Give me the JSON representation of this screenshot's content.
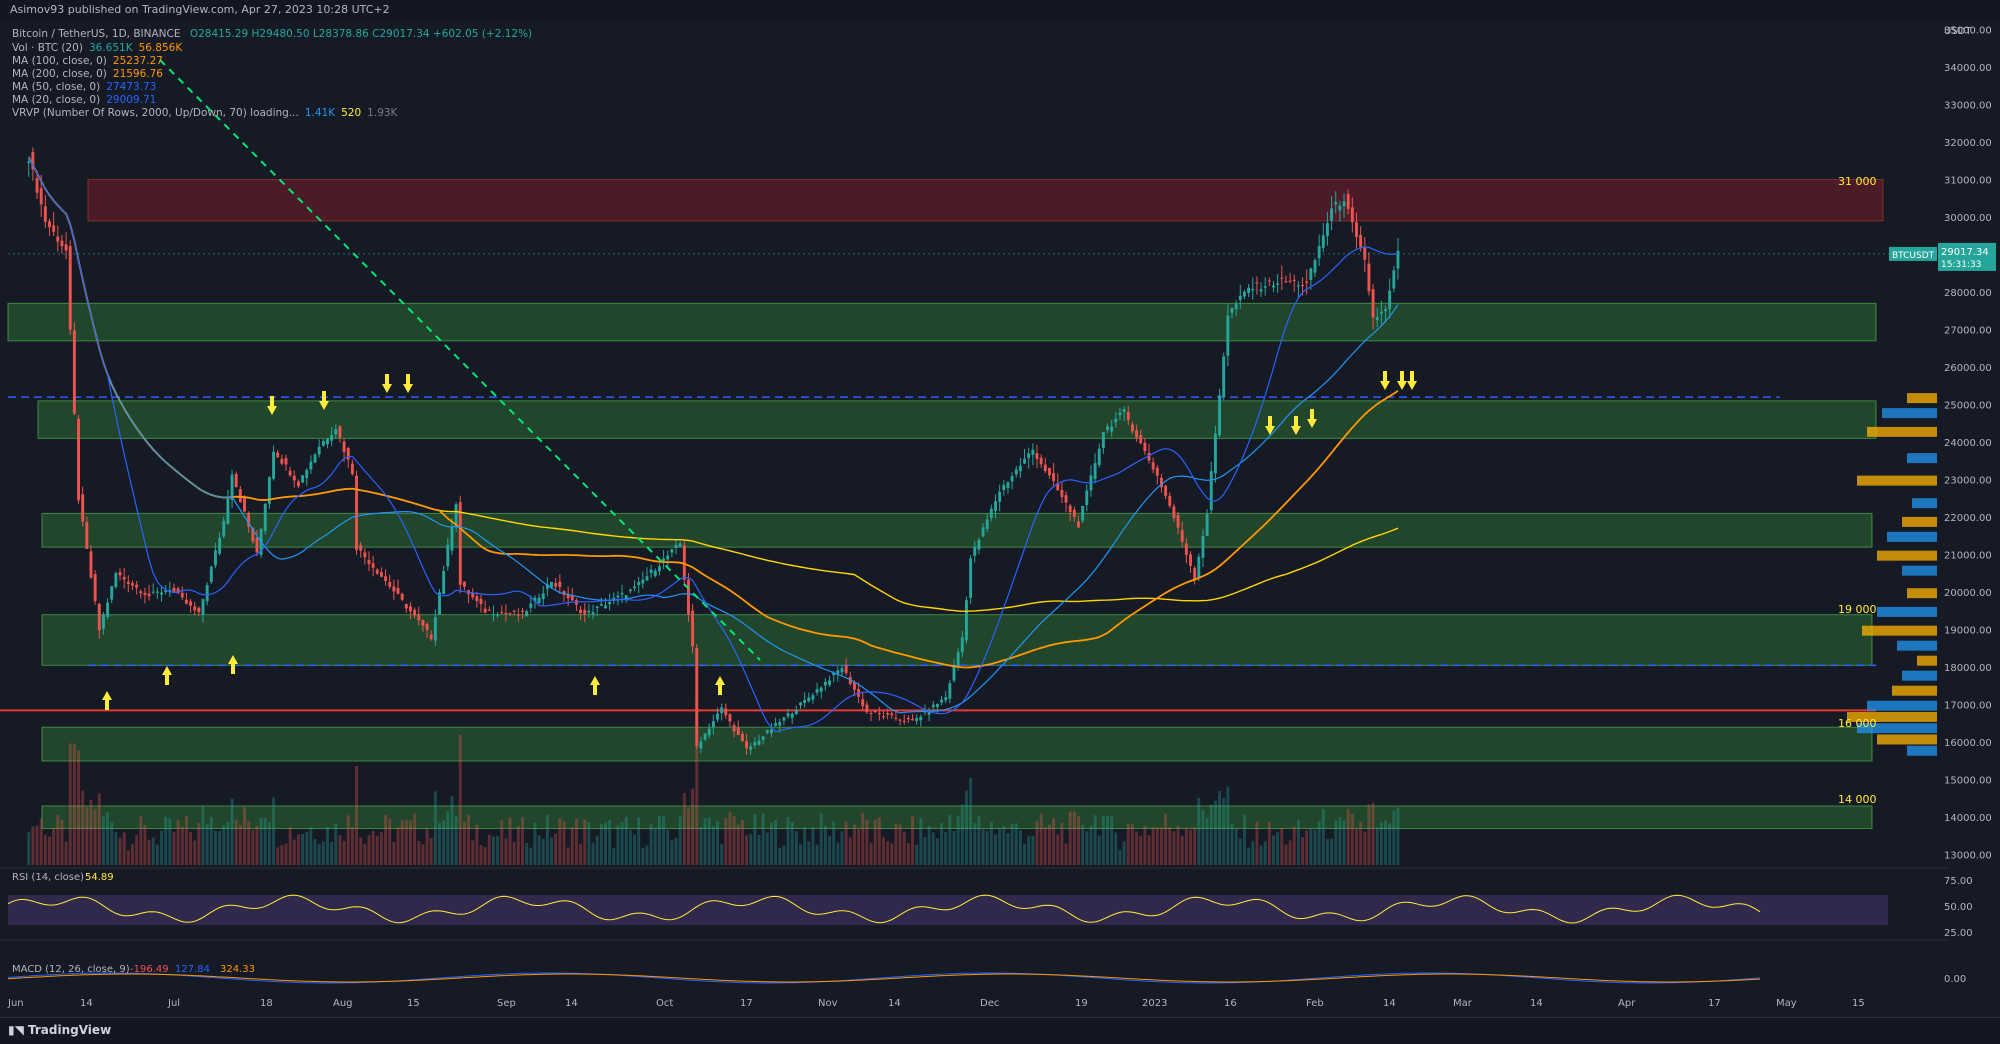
{
  "header": {
    "published": "Asimov93 published on TradingView.com, Apr 27, 2023 10:28 UTC+2"
  },
  "legend": {
    "symbol_line": "Bitcoin / TetherUS, 1D, BINANCE",
    "ohlc": "O28415.29 H29480.50 L28378.86 C29017.34 +602.05 (+2.12%)",
    "indicators": [
      {
        "label": "Vol · BTC (20)",
        "values": [
          "36.651K",
          "56.856K"
        ],
        "colors": [
          "#26a69a",
          "#ff9800"
        ]
      },
      {
        "label": "MA (100, close, 0)",
        "values": [
          "25237.27"
        ],
        "colors": [
          "#ff9800"
        ]
      },
      {
        "label": "MA (200, close, 0)",
        "values": [
          "21596.76"
        ],
        "colors": [
          "#ff9800"
        ]
      },
      {
        "label": "MA (50, close, 0)",
        "values": [
          "27473.73"
        ],
        "colors": [
          "#2962ff"
        ]
      },
      {
        "label": "MA (20, close, 0)",
        "values": [
          "29009.71"
        ],
        "colors": [
          "#2962ff"
        ]
      },
      {
        "label": "VRVP (Number Of Rows, 2000, Up/Down, 70) loading...",
        "values": [
          "1.41K",
          "520",
          "1.93K"
        ],
        "colors": [
          "#2196f3",
          "#ffeb3b",
          "#787b86"
        ]
      }
    ]
  },
  "price_axis": {
    "unit": "USDT",
    "labels": [
      "35000.00",
      "34000.00",
      "33000.00",
      "32000.00",
      "31000.00",
      "30000.00",
      "29000.00",
      "28000.00",
      "27000.00",
      "26000.00",
      "25000.00",
      "24000.00",
      "23000.00",
      "22000.00",
      "21000.00",
      "20000.00",
      "19000.00",
      "18000.00",
      "17000.00",
      "16000.00",
      "15000.00",
      "14000.00",
      "13000.00"
    ],
    "last_price_tag": {
      "symbol": "BTCUSDT",
      "price": "29017.34",
      "countdown": "15:31:33"
    }
  },
  "time_axis": {
    "labels": [
      "Jun",
      "14",
      "Jul",
      "18",
      "Aug",
      "15",
      "Sep",
      "14",
      "Oct",
      "17",
      "Nov",
      "14",
      "Dec",
      "19",
      "2023",
      "16",
      "Feb",
      "14",
      "Mar",
      "14",
      "Apr",
      "17",
      "May",
      "15"
    ]
  },
  "rsi_panel": {
    "title": "RSI (14, close)",
    "value": "54.89",
    "axis": [
      "75.00",
      "50.00",
      "25.00"
    ]
  },
  "macd_panel": {
    "title": "MACD (12, 26, close, 9)",
    "values": [
      "-196.49",
      "127.84",
      "324.33"
    ],
    "axis": [
      "0.00"
    ]
  },
  "zone_labels": [
    "31 000",
    "19 000",
    "16 000",
    "14 000"
  ],
  "footer": {
    "brand": "TradingView"
  },
  "colors": {
    "up": "#26a69a",
    "down": "#ef5350",
    "ma20": "#2962ff",
    "ma50": "#2196f3",
    "ma100": "#ff9800",
    "ma200": "#ffd600",
    "support_zone": "#2e7d32",
    "resistance_zone": "#8b1e2d"
  },
  "chart_data": {
    "type": "candlestick",
    "symbol": "BTCUSDT",
    "timeframe": "1D",
    "close_path": [
      [
        "2022-06-01",
        31600
      ],
      [
        "2022-06-05",
        29900
      ],
      [
        "2022-06-10",
        29100
      ],
      [
        "2022-06-13",
        22500
      ],
      [
        "2022-06-18",
        19000
      ],
      [
        "2022-06-22",
        20500
      ],
      [
        "2022-06-30",
        19900
      ],
      [
        "2022-07-05",
        20100
      ],
      [
        "2022-07-12",
        19400
      ],
      [
        "2022-07-18",
        21900
      ],
      [
        "2022-07-20",
        23200
      ],
      [
        "2022-07-26",
        21000
      ],
      [
        "2022-07-30",
        23800
      ],
      [
        "2022-08-05",
        22900
      ],
      [
        "2022-08-10",
        23900
      ],
      [
        "2022-08-14",
        24400
      ],
      [
        "2022-08-18",
        23200
      ],
      [
        "2022-08-19",
        21200
      ],
      [
        "2022-08-26",
        20300
      ],
      [
        "2022-09-06",
        18800
      ],
      [
        "2022-09-12",
        22400
      ],
      [
        "2022-09-13",
        20200
      ],
      [
        "2022-09-19",
        19500
      ],
      [
        "2022-09-28",
        19400
      ],
      [
        "2022-10-05",
        20300
      ],
      [
        "2022-10-13",
        19400
      ],
      [
        "2022-10-25",
        20100
      ],
      [
        "2022-11-05",
        21300
      ],
      [
        "2022-11-08",
        18500
      ],
      [
        "2022-11-09",
        15900
      ],
      [
        "2022-11-15",
        16900
      ],
      [
        "2022-11-21",
        15800
      ],
      [
        "2022-12-05",
        17100
      ],
      [
        "2022-12-14",
        18000
      ],
      [
        "2022-12-20",
        16800
      ],
      [
        "2022-12-31",
        16550
      ],
      [
        "2023-01-08",
        17200
      ],
      [
        "2023-01-12",
        18800
      ],
      [
        "2023-01-14",
        20900
      ],
      [
        "2023-01-21",
        22700
      ],
      [
        "2023-01-29",
        23800
      ],
      [
        "2023-02-09",
        21800
      ],
      [
        "2023-02-15",
        24300
      ],
      [
        "2023-02-20",
        24800
      ],
      [
        "2023-02-28",
        23100
      ],
      [
        "2023-03-03",
        22300
      ],
      [
        "2023-03-09",
        20400
      ],
      [
        "2023-03-12",
        22100
      ],
      [
        "2023-03-17",
        27400
      ],
      [
        "2023-03-22",
        28100
      ],
      [
        "2023-03-30",
        28300
      ],
      [
        "2023-04-05",
        28200
      ],
      [
        "2023-04-11",
        30200
      ],
      [
        "2023-04-14",
        30500
      ],
      [
        "2023-04-17",
        29400
      ],
      [
        "2023-04-19",
        28800
      ],
      [
        "2023-04-21",
        27300
      ],
      [
        "2023-04-24",
        27500
      ],
      [
        "2023-04-27",
        29017.34
      ]
    ],
    "ma_100_end": 25237.27,
    "ma_200_end": 21596.76,
    "ma_50_end": 27473.73,
    "ma_20_end": 29009.71,
    "horizontal_levels": [
      31000,
      25200,
      18050,
      16850
    ],
    "resistance_zone": [
      29900,
      31000
    ],
    "support_zones": [
      [
        26700,
        27700
      ],
      [
        24100,
        25100
      ],
      [
        21200,
        22100
      ],
      [
        18050,
        19400
      ],
      [
        15500,
        16400
      ],
      [
        13700,
        14300
      ]
    ],
    "y_range": [
      12700,
      35200
    ]
  }
}
